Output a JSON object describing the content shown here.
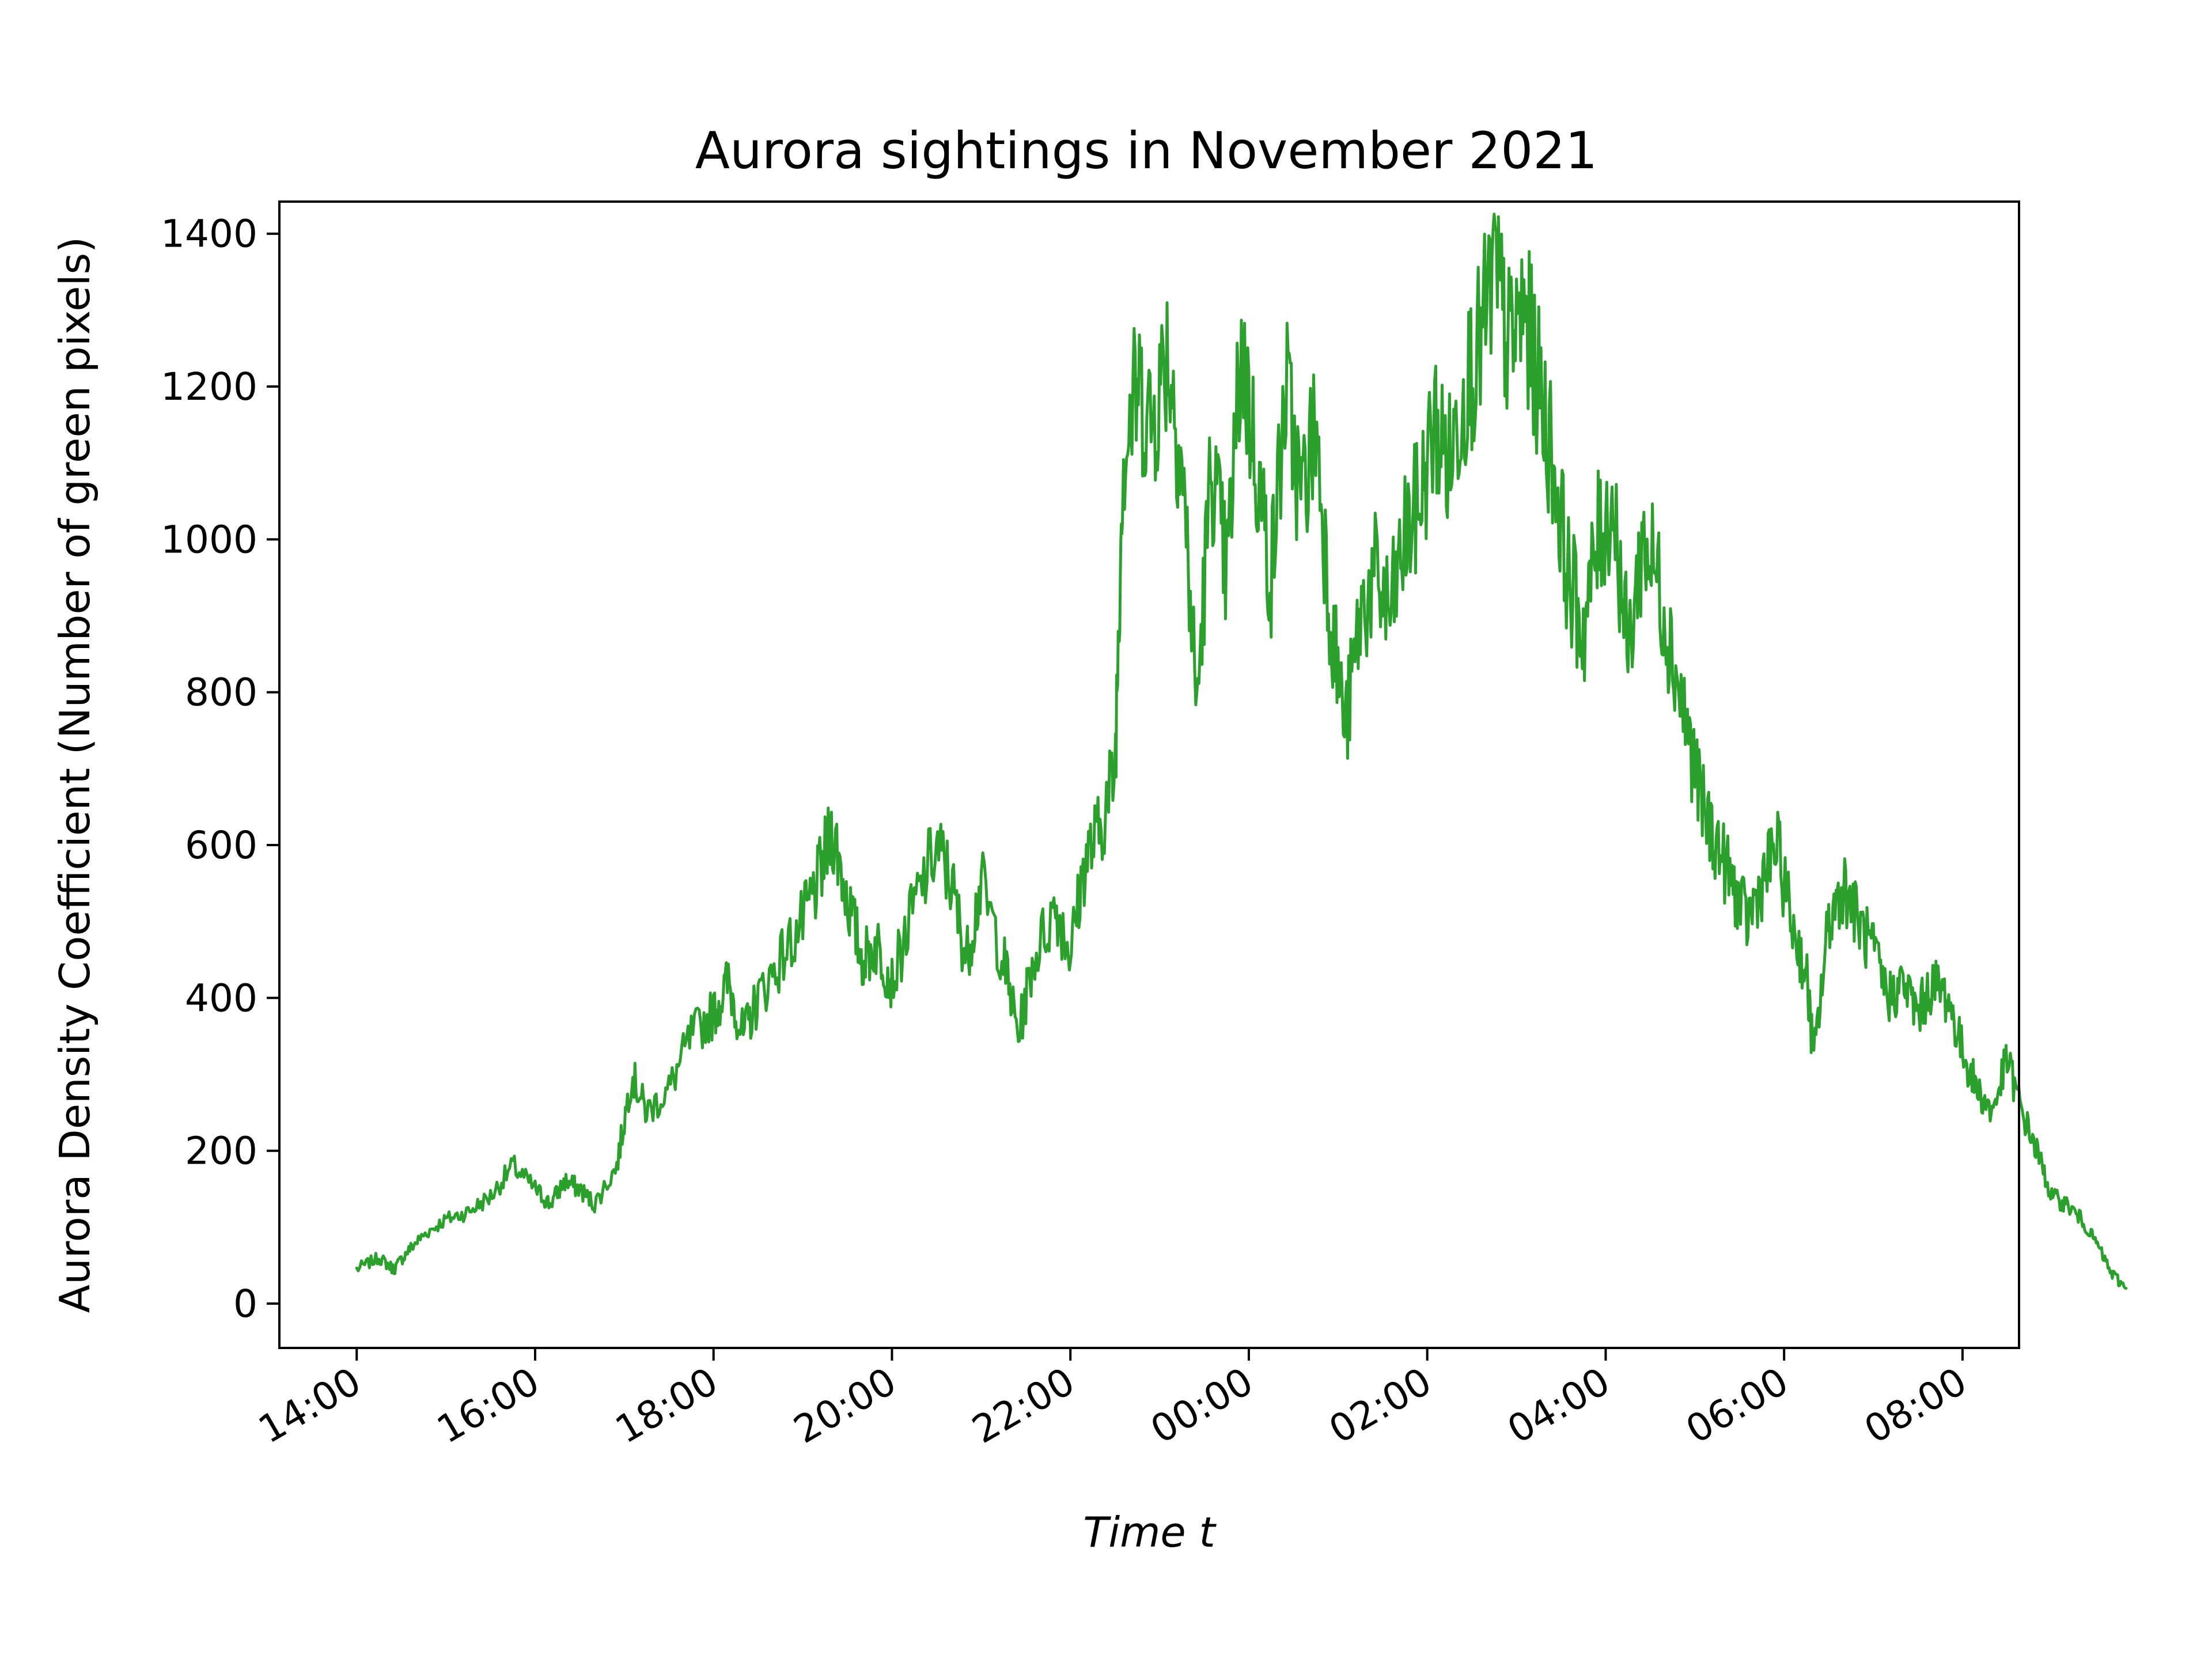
{
  "chart_data": {
    "type": "line",
    "title": "Aurora sightings in November 2021",
    "xlabel": "Time t",
    "ylabel": "Aurora Density Coefficient (Number of green pixels)",
    "x_unit": "hours",
    "xlim": [
      "13:08",
      "08:38"
    ],
    "ylim": [
      -58,
      1442
    ],
    "x_ticks": [
      {
        "label": "14:00",
        "hours": 14
      },
      {
        "label": "16:00",
        "hours": 16
      },
      {
        "label": "18:00",
        "hours": 18
      },
      {
        "label": "20:00",
        "hours": 20
      },
      {
        "label": "22:00",
        "hours": 22
      },
      {
        "label": "00:00",
        "hours": 24
      },
      {
        "label": "02:00",
        "hours": 26
      },
      {
        "label": "04:00",
        "hours": 28
      },
      {
        "label": "06:00",
        "hours": 30
      },
      {
        "label": "08:00",
        "hours": 32
      }
    ],
    "y_ticks": [
      0,
      200,
      400,
      600,
      800,
      1000,
      1200,
      1400
    ],
    "grid": false,
    "color": "#2ca02c",
    "series": [
      {
        "points": [
          [
            "14:00",
            45
          ],
          [
            "14:15",
            60
          ],
          [
            "14:25",
            45
          ],
          [
            "14:35",
            70
          ],
          [
            "14:45",
            90
          ],
          [
            "15:00",
            110
          ],
          [
            "15:15",
            120
          ],
          [
            "15:30",
            140
          ],
          [
            "15:45",
            180
          ],
          [
            "16:00",
            150
          ],
          [
            "16:10",
            130
          ],
          [
            "16:20",
            160
          ],
          [
            "16:30",
            150
          ],
          [
            "16:40",
            130
          ],
          [
            "16:55",
            180
          ],
          [
            "17:05",
            300
          ],
          [
            "17:15",
            250
          ],
          [
            "17:30",
            280
          ],
          [
            "17:45",
            350
          ],
          [
            "18:00",
            380
          ],
          [
            "18:10",
            420
          ],
          [
            "18:20",
            350
          ],
          [
            "18:30",
            400
          ],
          [
            "18:45",
            450
          ],
          [
            "19:00",
            500
          ],
          [
            "19:10",
            550
          ],
          [
            "19:20",
            620
          ],
          [
            "19:30",
            530
          ],
          [
            "19:40",
            450
          ],
          [
            "19:50",
            470
          ],
          [
            "20:00",
            420
          ],
          [
            "20:15",
            520
          ],
          [
            "20:30",
            600
          ],
          [
            "20:40",
            550
          ],
          [
            "20:50",
            450
          ],
          [
            "21:00",
            550
          ],
          [
            "21:15",
            450
          ],
          [
            "21:25",
            350
          ],
          [
            "21:35",
            450
          ],
          [
            "21:50",
            520
          ],
          [
            "22:00",
            460
          ],
          [
            "22:10",
            580
          ],
          [
            "22:20",
            620
          ],
          [
            "22:30",
            700
          ],
          [
            "22:35",
            1100
          ],
          [
            "22:45",
            1200
          ],
          [
            "22:55",
            1150
          ],
          [
            "23:05",
            1250
          ],
          [
            "23:15",
            1100
          ],
          [
            "23:25",
            780
          ],
          [
            "23:35",
            1100
          ],
          [
            "23:45",
            950
          ],
          [
            "23:55",
            1250
          ],
          [
            "00:05",
            1100
          ],
          [
            "00:15",
            950
          ],
          [
            "00:25",
            1200
          ],
          [
            "00:35",
            1050
          ],
          [
            "00:45",
            1150
          ],
          [
            "00:55",
            900
          ],
          [
            "01:05",
            750
          ],
          [
            "01:15",
            900
          ],
          [
            "01:25",
            950
          ],
          [
            "01:35",
            900
          ],
          [
            "01:45",
            1000
          ],
          [
            "01:55",
            1050
          ],
          [
            "02:05",
            1150
          ],
          [
            "02:15",
            1100
          ],
          [
            "02:25",
            1200
          ],
          [
            "02:35",
            1250
          ],
          [
            "02:45",
            1350
          ],
          [
            "02:55",
            1250
          ],
          [
            "03:05",
            1300
          ],
          [
            "03:15",
            1200
          ],
          [
            "03:25",
            1100
          ],
          [
            "03:35",
            950
          ],
          [
            "03:45",
            880
          ],
          [
            "03:55",
            1000
          ],
          [
            "04:05",
            1050
          ],
          [
            "04:15",
            850
          ],
          [
            "04:25",
            1000
          ],
          [
            "04:35",
            950
          ],
          [
            "04:45",
            850
          ],
          [
            "04:55",
            750
          ],
          [
            "05:05",
            650
          ],
          [
            "05:15",
            600
          ],
          [
            "05:25",
            550
          ],
          [
            "05:35",
            500
          ],
          [
            "05:45",
            550
          ],
          [
            "05:55",
            600
          ],
          [
            "06:05",
            500
          ],
          [
            "06:15",
            430
          ],
          [
            "06:20",
            320
          ],
          [
            "06:30",
            500
          ],
          [
            "06:40",
            550
          ],
          [
            "06:50",
            500
          ],
          [
            "07:00",
            460
          ],
          [
            "07:10",
            400
          ],
          [
            "07:20",
            420
          ],
          [
            "07:30",
            380
          ],
          [
            "07:40",
            420
          ],
          [
            "07:50",
            400
          ],
          [
            "08:00",
            330
          ],
          [
            "08:10",
            280
          ],
          [
            "08:20",
            250
          ],
          [
            "08:30",
            320
          ],
          [
            "08:40",
            250
          ],
          [
            "08:50",
            200
          ],
          [
            "09:00",
            140
          ],
          [
            "09:10",
            130
          ],
          [
            "09:20",
            110
          ],
          [
            "09:30",
            80
          ],
          [
            "09:40",
            40
          ],
          [
            "09:50",
            20
          ]
        ]
      }
    ]
  }
}
